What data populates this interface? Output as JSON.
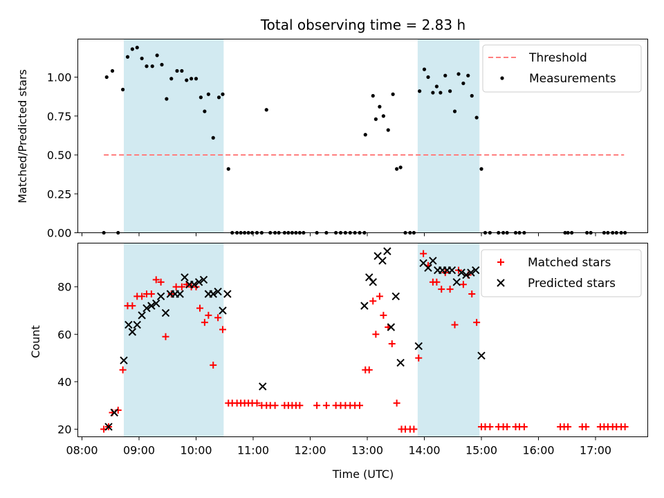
{
  "chart_data": [
    {
      "type": "scatter",
      "title": "Total observing time = 2.83 h",
      "xlabel": "",
      "ylabel": "Matched/Predicted stars",
      "xlim": [
        "08:00",
        "18:00"
      ],
      "ylim": [
        0,
        1.25
      ],
      "yticks": [
        "0.00",
        "0.25",
        "0.50",
        "0.75",
        "1.00"
      ],
      "legend_position": "upper right",
      "shaded_intervals": [
        [
          "08:44",
          "10:29"
        ],
        [
          "13:53",
          "14:58"
        ]
      ],
      "shade_color": "#add8e6",
      "threshold": {
        "name": "Threshold",
        "value": 0.5,
        "x_start": "08:23",
        "x_end": "17:30",
        "color": "#ff7f7f",
        "style": "dashed"
      },
      "series": [
        {
          "name": "Measurements",
          "color": "#000000",
          "marker": "dot",
          "points": [
            [
              "08:23",
              0
            ],
            [
              "08:26",
              1.0
            ],
            [
              "08:32",
              1.04
            ],
            [
              "08:38",
              0
            ],
            [
              "08:43",
              0.92
            ],
            [
              "08:48",
              1.13
            ],
            [
              "08:53",
              1.18
            ],
            [
              "08:58",
              1.19
            ],
            [
              "09:03",
              1.12
            ],
            [
              "09:08",
              1.07
            ],
            [
              "09:14",
              1.07
            ],
            [
              "09:19",
              1.14
            ],
            [
              "09:24",
              1.08
            ],
            [
              "09:29",
              0.86
            ],
            [
              "09:34",
              0.99
            ],
            [
              "09:40",
              1.04
            ],
            [
              "09:45",
              1.04
            ],
            [
              "09:50",
              0.98
            ],
            [
              "09:55",
              0.99
            ],
            [
              "10:00",
              0.99
            ],
            [
              "10:05",
              0.87
            ],
            [
              "10:09",
              0.78
            ],
            [
              "10:13",
              0.89
            ],
            [
              "10:18",
              0.61
            ],
            [
              "10:24",
              0.87
            ],
            [
              "10:28",
              0.89
            ],
            [
              "10:34",
              0.41
            ],
            [
              "10:38",
              0
            ],
            [
              "10:43",
              0
            ],
            [
              "10:47",
              0
            ],
            [
              "10:51",
              0
            ],
            [
              "10:55",
              0
            ],
            [
              "10:59",
              0
            ],
            [
              "11:04",
              0
            ],
            [
              "11:09",
              0
            ],
            [
              "11:14",
              0.79
            ],
            [
              "11:18",
              0
            ],
            [
              "11:23",
              0
            ],
            [
              "11:27",
              0
            ],
            [
              "11:33",
              0
            ],
            [
              "11:37",
              0
            ],
            [
              "11:41",
              0
            ],
            [
              "11:45",
              0
            ],
            [
              "11:49",
              0
            ],
            [
              "11:53",
              0
            ],
            [
              "12:07",
              0
            ],
            [
              "12:17",
              0
            ],
            [
              "12:27",
              0
            ],
            [
              "12:32",
              0
            ],
            [
              "12:37",
              0
            ],
            [
              "12:42",
              0
            ],
            [
              "12:47",
              0
            ],
            [
              "12:52",
              0
            ],
            [
              "12:57",
              0
            ],
            [
              "12:58",
              0.63
            ],
            [
              "13:06",
              0.88
            ],
            [
              "13:09",
              0.73
            ],
            [
              "13:13",
              0.81
            ],
            [
              "13:17",
              0.75
            ],
            [
              "13:22",
              0.66
            ],
            [
              "13:27",
              0.89
            ],
            [
              "13:31",
              0.41
            ],
            [
              "13:35",
              0.42
            ],
            [
              "13:40",
              0
            ],
            [
              "13:45",
              0
            ],
            [
              "13:49",
              0
            ],
            [
              "13:55",
              0.91
            ],
            [
              "14:00",
              1.05
            ],
            [
              "14:04",
              1.0
            ],
            [
              "14:09",
              0.9
            ],
            [
              "14:13",
              0.94
            ],
            [
              "14:17",
              0.9
            ],
            [
              "14:22",
              1.01
            ],
            [
              "14:27",
              0.91
            ],
            [
              "14:32",
              0.78
            ],
            [
              "14:36",
              1.02
            ],
            [
              "14:41",
              0.96
            ],
            [
              "14:46",
              1.01
            ],
            [
              "14:50",
              0.88
            ],
            [
              "14:55",
              0.74
            ],
            [
              "15:00",
              0.41
            ],
            [
              "15:04",
              0
            ],
            [
              "15:09",
              0
            ],
            [
              "15:18",
              0
            ],
            [
              "15:23",
              0
            ],
            [
              "15:27",
              0
            ],
            [
              "15:36",
              0
            ],
            [
              "15:40",
              0
            ],
            [
              "15:45",
              0
            ],
            [
              "16:28",
              0
            ],
            [
              "16:31",
              0
            ],
            [
              "16:35",
              0
            ],
            [
              "16:51",
              0
            ],
            [
              "16:55",
              0
            ],
            [
              "17:09",
              0
            ],
            [
              "17:13",
              0
            ],
            [
              "17:18",
              0
            ],
            [
              "17:22",
              0
            ],
            [
              "17:27",
              0
            ],
            [
              "17:31",
              0
            ]
          ]
        }
      ]
    },
    {
      "type": "scatter",
      "title": "",
      "xlabel": "Time (UTC)",
      "ylabel": "Count",
      "xlim": [
        "08:00",
        "18:00"
      ],
      "ylim": [
        16.5,
        97
      ],
      "xticks": [
        "08:00",
        "09:00",
        "10:00",
        "11:00",
        "12:00",
        "13:00",
        "14:00",
        "15:00",
        "16:00",
        "17:00"
      ],
      "yticks": [
        "20",
        "40",
        "60",
        "80"
      ],
      "legend_position": "upper right",
      "shaded_intervals": [
        [
          "08:44",
          "10:29"
        ],
        [
          "13:53",
          "14:58"
        ]
      ],
      "shade_color": "#add8e6",
      "series": [
        {
          "name": "Matched stars",
          "color": "#ff0000",
          "marker": "plus",
          "points": [
            [
              "08:23",
              20
            ],
            [
              "08:28",
              21
            ],
            [
              "08:32",
              27
            ],
            [
              "08:38",
              28
            ],
            [
              "08:43",
              45
            ],
            [
              "08:48",
              72
            ],
            [
              "08:53",
              72
            ],
            [
              "08:58",
              76
            ],
            [
              "09:03",
              76
            ],
            [
              "09:08",
              77
            ],
            [
              "09:13",
              77
            ],
            [
              "09:18",
              83
            ],
            [
              "09:23",
              82
            ],
            [
              "09:28",
              59
            ],
            [
              "09:34",
              77
            ],
            [
              "09:39",
              80
            ],
            [
              "09:45",
              80
            ],
            [
              "09:50",
              81
            ],
            [
              "09:55",
              80
            ],
            [
              "10:00",
              80
            ],
            [
              "10:04",
              71
            ],
            [
              "10:09",
              65
            ],
            [
              "10:13",
              68
            ],
            [
              "10:18",
              47
            ],
            [
              "10:23",
              67
            ],
            [
              "10:28",
              62
            ],
            [
              "10:34",
              31
            ],
            [
              "10:38",
              31
            ],
            [
              "10:43",
              31
            ],
            [
              "10:47",
              31
            ],
            [
              "10:51",
              31
            ],
            [
              "10:55",
              31
            ],
            [
              "10:59",
              31
            ],
            [
              "11:04",
              31
            ],
            [
              "11:09",
              30
            ],
            [
              "11:14",
              30
            ],
            [
              "11:18",
              30
            ],
            [
              "11:23",
              30
            ],
            [
              "11:33",
              30
            ],
            [
              "11:37",
              30
            ],
            [
              "11:41",
              30
            ],
            [
              "11:45",
              30
            ],
            [
              "11:49",
              30
            ],
            [
              "12:07",
              30
            ],
            [
              "12:17",
              30
            ],
            [
              "12:27",
              30
            ],
            [
              "12:32",
              30
            ],
            [
              "12:37",
              30
            ],
            [
              "12:42",
              30
            ],
            [
              "12:47",
              30
            ],
            [
              "12:52",
              30
            ],
            [
              "12:58",
              45
            ],
            [
              "13:02",
              45
            ],
            [
              "13:06",
              74
            ],
            [
              "13:09",
              60
            ],
            [
              "13:13",
              76
            ],
            [
              "13:17",
              68
            ],
            [
              "13:22",
              63
            ],
            [
              "13:26",
              56
            ],
            [
              "13:31",
              31
            ],
            [
              "13:36",
              20
            ],
            [
              "13:40",
              20
            ],
            [
              "13:45",
              20
            ],
            [
              "13:49",
              20
            ],
            [
              "13:54",
              50
            ],
            [
              "13:59",
              94
            ],
            [
              "14:04",
              89
            ],
            [
              "14:09",
              82
            ],
            [
              "14:13",
              82
            ],
            [
              "14:18",
              79
            ],
            [
              "14:22",
              86
            ],
            [
              "14:27",
              79
            ],
            [
              "14:32",
              64
            ],
            [
              "14:36",
              87
            ],
            [
              "14:41",
              81
            ],
            [
              "14:46",
              85
            ],
            [
              "14:50",
              77
            ],
            [
              "14:55",
              65
            ],
            [
              "15:00",
              21
            ],
            [
              "15:04",
              21
            ],
            [
              "15:09",
              21
            ],
            [
              "15:18",
              21
            ],
            [
              "15:23",
              21
            ],
            [
              "15:27",
              21
            ],
            [
              "15:36",
              21
            ],
            [
              "15:40",
              21
            ],
            [
              "15:45",
              21
            ],
            [
              "16:23",
              21
            ],
            [
              "16:27",
              21
            ],
            [
              "16:31",
              21
            ],
            [
              "16:46",
              21
            ],
            [
              "16:50",
              21
            ],
            [
              "17:05",
              21
            ],
            [
              "17:09",
              21
            ],
            [
              "17:13",
              21
            ],
            [
              "17:18",
              21
            ],
            [
              "17:22",
              21
            ],
            [
              "17:27",
              21
            ],
            [
              "17:31",
              21
            ]
          ]
        },
        {
          "name": "Predicted stars",
          "color": "#000000",
          "marker": "x",
          "points": [
            [
              "08:28",
              21
            ],
            [
              "08:34",
              27
            ],
            [
              "08:44",
              49
            ],
            [
              "08:49",
              64
            ],
            [
              "08:53",
              61
            ],
            [
              "08:58",
              64
            ],
            [
              "09:03",
              68
            ],
            [
              "09:08",
              71
            ],
            [
              "09:13",
              72
            ],
            [
              "09:18",
              73
            ],
            [
              "09:23",
              76
            ],
            [
              "09:28",
              69
            ],
            [
              "09:33",
              77
            ],
            [
              "09:38",
              77
            ],
            [
              "09:43",
              77
            ],
            [
              "09:48",
              84
            ],
            [
              "09:53",
              81
            ],
            [
              "09:58",
              81
            ],
            [
              "10:03",
              82
            ],
            [
              "10:08",
              83
            ],
            [
              "10:13",
              77
            ],
            [
              "10:18",
              77
            ],
            [
              "10:23",
              78
            ],
            [
              "10:28",
              70
            ],
            [
              "10:33",
              77
            ],
            [
              "11:10",
              38
            ],
            [
              "12:57",
              72
            ],
            [
              "13:02",
              84
            ],
            [
              "13:06",
              82
            ],
            [
              "13:11",
              93
            ],
            [
              "13:16",
              91
            ],
            [
              "13:21",
              95
            ],
            [
              "13:25",
              63
            ],
            [
              "13:30",
              76
            ],
            [
              "13:35",
              48
            ],
            [
              "13:54",
              55
            ],
            [
              "13:59",
              90
            ],
            [
              "14:04",
              88
            ],
            [
              "14:09",
              91
            ],
            [
              "14:14",
              87
            ],
            [
              "14:19",
              87
            ],
            [
              "14:24",
              87
            ],
            [
              "14:29",
              87
            ],
            [
              "14:34",
              82
            ],
            [
              "14:39",
              86
            ],
            [
              "14:44",
              85
            ],
            [
              "14:49",
              86
            ],
            [
              "14:54",
              87
            ],
            [
              "15:00",
              51
            ]
          ]
        }
      ]
    }
  ]
}
